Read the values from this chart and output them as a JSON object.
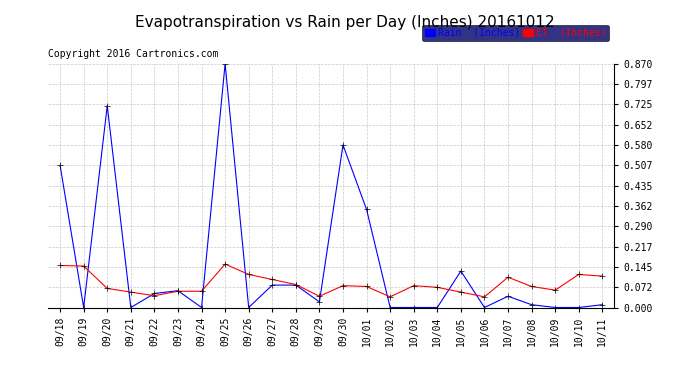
{
  "title": "Evapotranspiration vs Rain per Day (Inches) 20161012",
  "copyright": "Copyright 2016 Cartronics.com",
  "legend_rain": "Rain  (Inches)",
  "legend_et": "ET  (Inches)",
  "rain_color": "#0000FF",
  "et_color": "#FF0000",
  "background_color": "#FFFFFF",
  "grid_color": "#BBBBBB",
  "labels": [
    "09/18",
    "09/19",
    "09/20",
    "09/21",
    "09/22",
    "09/23",
    "09/24",
    "09/25",
    "09/26",
    "09/27",
    "09/28",
    "09/29",
    "09/30",
    "10/01",
    "10/02",
    "10/03",
    "10/04",
    "10/05",
    "10/06",
    "10/07",
    "10/08",
    "10/09",
    "10/10",
    "10/11"
  ],
  "rain": [
    0.507,
    0.0,
    0.72,
    0.0,
    0.05,
    0.06,
    0.0,
    0.87,
    0.0,
    0.08,
    0.08,
    0.02,
    0.58,
    0.35,
    0.0,
    0.0,
    0.0,
    0.13,
    0.0,
    0.04,
    0.01,
    0.0,
    0.0,
    0.01
  ],
  "et": [
    0.15,
    0.148,
    0.068,
    0.055,
    0.042,
    0.058,
    0.058,
    0.155,
    0.118,
    0.1,
    0.082,
    0.04,
    0.078,
    0.075,
    0.038,
    0.078,
    0.072,
    0.055,
    0.038,
    0.108,
    0.075,
    0.062,
    0.118,
    0.112
  ],
  "yticks": [
    0.0,
    0.072,
    0.145,
    0.217,
    0.29,
    0.362,
    0.435,
    0.507,
    0.58,
    0.652,
    0.725,
    0.797,
    0.87
  ],
  "ylim": [
    0.0,
    0.87
  ],
  "title_fontsize": 11,
  "copyright_fontsize": 7,
  "tick_fontsize": 7,
  "legend_fontsize": 7
}
